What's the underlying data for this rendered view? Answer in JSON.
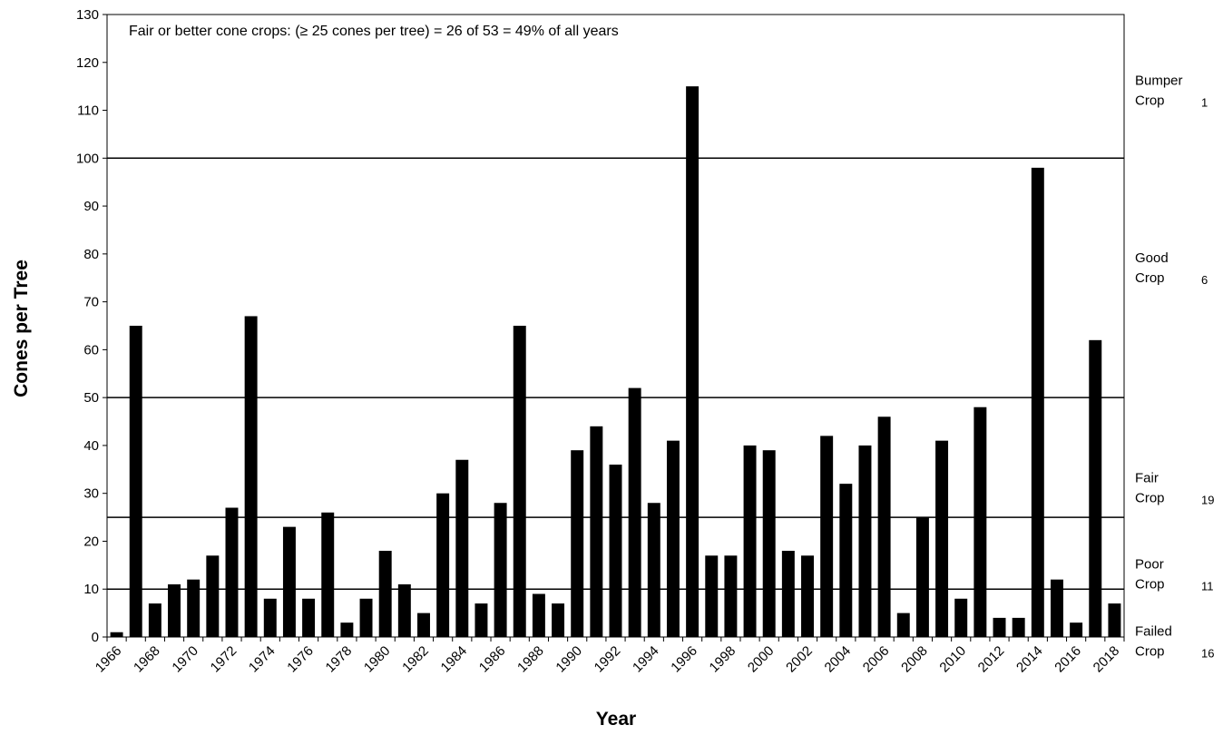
{
  "chart_data": {
    "type": "bar",
    "xlabel": "Year",
    "ylabel": "Cones per Tree",
    "ylim": [
      0,
      130
    ],
    "yticks": [
      "0",
      "10",
      "20",
      "30",
      "40",
      "50",
      "60",
      "70",
      "80",
      "90",
      "100",
      "110",
      "120",
      "130"
    ],
    "xtick_labels": [
      "1966",
      "1968",
      "1970",
      "1972",
      "1974",
      "1976",
      "1978",
      "1980",
      "1982",
      "1984",
      "1986",
      "1988",
      "1990",
      "1992",
      "1994",
      "1996",
      "1998",
      "2000",
      "2002",
      "2004",
      "2006",
      "2008",
      "2010",
      "2012",
      "2014",
      "2016",
      "2018"
    ],
    "annotation": "Fair or better cone crops: (≥ 25 cones per tree) = 26 of 53 = 49% of all years",
    "bar_color": "#000000",
    "categories": [
      1966,
      1967,
      1968,
      1969,
      1970,
      1971,
      1972,
      1973,
      1974,
      1975,
      1976,
      1977,
      1978,
      1979,
      1980,
      1981,
      1982,
      1983,
      1984,
      1985,
      1986,
      1987,
      1988,
      1989,
      1990,
      1991,
      1992,
      1993,
      1994,
      1995,
      1996,
      1997,
      1998,
      1999,
      2000,
      2001,
      2002,
      2003,
      2004,
      2005,
      2006,
      2007,
      2008,
      2009,
      2010,
      2011,
      2012,
      2013,
      2014,
      2015,
      2016,
      2017,
      2018
    ],
    "values": [
      1,
      65,
      7,
      11,
      12,
      17,
      27,
      67,
      8,
      23,
      8,
      26,
      3,
      8,
      18,
      11,
      5,
      30,
      37,
      7,
      28,
      65,
      9,
      7,
      39,
      44,
      36,
      52,
      28,
      41,
      115,
      17,
      17,
      40,
      39,
      18,
      17,
      42,
      32,
      40,
      46,
      5,
      25,
      41,
      8,
      48,
      4,
      4,
      98,
      12,
      3,
      62,
      7
    ],
    "thresholds": [
      10,
      25,
      50,
      100
    ],
    "crop_categories": [
      {
        "label_line1": "Bumper",
        "label_line2": "Crop",
        "count": "1"
      },
      {
        "label_line1": "Good",
        "label_line2": "Crop",
        "count": "6"
      },
      {
        "label_line1": "Fair",
        "label_line2": "Crop",
        "count": "19"
      },
      {
        "label_line1": "Poor",
        "label_line2": "Crop",
        "count": "11"
      },
      {
        "label_line1": "Failed",
        "label_line2": "Crop",
        "count": "16"
      }
    ]
  }
}
